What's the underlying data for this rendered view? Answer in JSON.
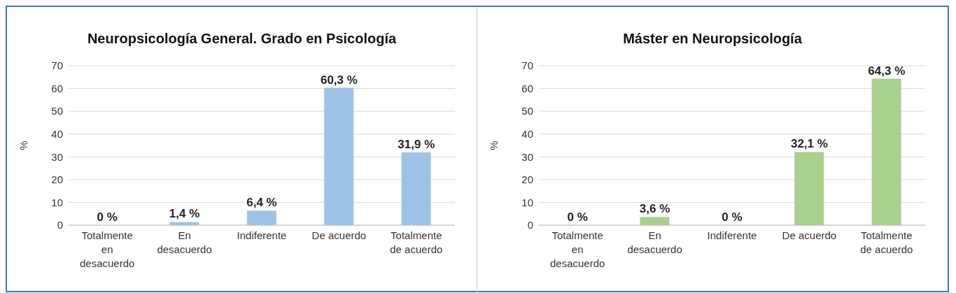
{
  "chart_data": [
    {
      "type": "bar",
      "title": "Neuropsicología General. Grado en Psicología",
      "ylabel": "%",
      "categories": [
        "Totalmente en desacuerdo",
        "En desacuerdo",
        "Indiferente",
        "De acuerdo",
        "Totalmente de acuerdo"
      ],
      "values": [
        0,
        1.4,
        6.4,
        60.3,
        31.9
      ],
      "value_labels": [
        "0 %",
        "1,4 %",
        "6,4 %",
        "60,3 %",
        "31,9 %"
      ],
      "color": "#9dc3e6",
      "ylim": [
        0,
        70
      ],
      "yticks": [
        0,
        10,
        20,
        30,
        40,
        50,
        60,
        70
      ],
      "grid": "y",
      "legend": false
    },
    {
      "type": "bar",
      "title": "Máster en Neuropsicología",
      "ylabel": "%",
      "categories": [
        "Totalmente en desacuerdo",
        "En desacuerdo",
        "Indiferente",
        "De acuerdo",
        "Totalmente de acuerdo"
      ],
      "values": [
        0,
        3.6,
        0,
        32.1,
        64.3
      ],
      "value_labels": [
        "0 %",
        "3,6 %",
        "0 %",
        "32,1 %",
        "64,3 %"
      ],
      "color": "#a9d18e",
      "ylim": [
        0,
        70
      ],
      "yticks": [
        0,
        10,
        20,
        30,
        40,
        50,
        60,
        70
      ],
      "grid": "y",
      "legend": false
    }
  ]
}
